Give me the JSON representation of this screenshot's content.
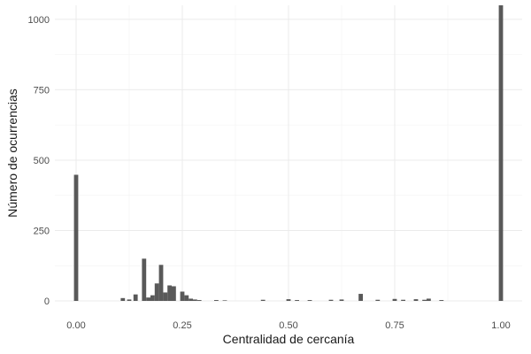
{
  "chart_data": {
    "type": "bar",
    "title": "",
    "xlabel": "Centralidad de cercanía",
    "ylabel": "Número de ocurrencias",
    "xlim": [
      -0.05,
      1.05
    ],
    "ylim": [
      0,
      1050
    ],
    "x_ticks": [
      0.0,
      0.25,
      0.5,
      0.75,
      1.0
    ],
    "x_tick_labels": [
      "0.00",
      "0.25",
      "0.50",
      "0.75",
      "1.00"
    ],
    "y_ticks": [
      0,
      250,
      500,
      750,
      1000
    ],
    "y_tick_labels": [
      "0",
      "250",
      "500",
      "750",
      "1000"
    ],
    "bin_width": 0.01,
    "grid": true,
    "color": "#595959",
    "bins": [
      {
        "x": 0.0,
        "count": 448
      },
      {
        "x": 0.11,
        "count": 10
      },
      {
        "x": 0.125,
        "count": 5
      },
      {
        "x": 0.14,
        "count": 23
      },
      {
        "x": 0.16,
        "count": 150
      },
      {
        "x": 0.17,
        "count": 12
      },
      {
        "x": 0.18,
        "count": 20
      },
      {
        "x": 0.19,
        "count": 62
      },
      {
        "x": 0.2,
        "count": 128
      },
      {
        "x": 0.21,
        "count": 30
      },
      {
        "x": 0.22,
        "count": 55
      },
      {
        "x": 0.23,
        "count": 52
      },
      {
        "x": 0.25,
        "count": 33
      },
      {
        "x": 0.26,
        "count": 20
      },
      {
        "x": 0.27,
        "count": 8
      },
      {
        "x": 0.28,
        "count": 5
      },
      {
        "x": 0.29,
        "count": 3
      },
      {
        "x": 0.33,
        "count": 3
      },
      {
        "x": 0.35,
        "count": 2
      },
      {
        "x": 0.44,
        "count": 4
      },
      {
        "x": 0.5,
        "count": 6
      },
      {
        "x": 0.52,
        "count": 3
      },
      {
        "x": 0.55,
        "count": 3
      },
      {
        "x": 0.6,
        "count": 4
      },
      {
        "x": 0.625,
        "count": 5
      },
      {
        "x": 0.67,
        "count": 25
      },
      {
        "x": 0.71,
        "count": 4
      },
      {
        "x": 0.75,
        "count": 7
      },
      {
        "x": 0.77,
        "count": 4
      },
      {
        "x": 0.8,
        "count": 6
      },
      {
        "x": 0.82,
        "count": 4
      },
      {
        "x": 0.83,
        "count": 8
      },
      {
        "x": 0.86,
        "count": 3
      },
      {
        "x": 1.0,
        "count": 1050
      }
    ]
  }
}
